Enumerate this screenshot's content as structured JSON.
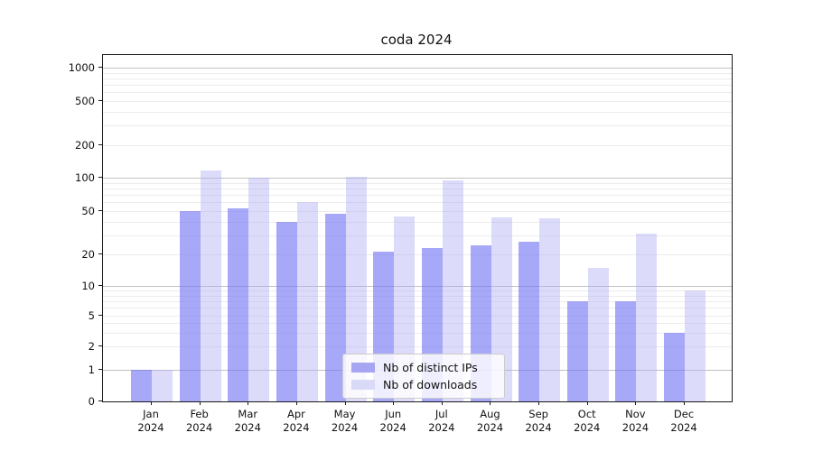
{
  "figure": {
    "title": "coda 2024"
  },
  "chart_data": {
    "type": "bar",
    "title": "coda 2024",
    "categories": [
      "Jan",
      "Feb",
      "Mar",
      "Apr",
      "May",
      "Jun",
      "Jul",
      "Aug",
      "Sep",
      "Oct",
      "Nov",
      "Dec"
    ],
    "category_year": "2024",
    "series": [
      {
        "name": "Nb of distinct IPs",
        "color": "#a5a5f1",
        "fill": "rgba(115,115,244,0.62)",
        "values": [
          1,
          50,
          53,
          40,
          47,
          21,
          23,
          24,
          26,
          7,
          7,
          3
        ]
      },
      {
        "name": "Nb of downloads",
        "color": "#d9d9f8",
        "fill": "rgba(177,177,244,0.45)",
        "values": [
          1,
          117,
          100,
          60,
          103,
          45,
          94,
          44,
          43,
          15,
          31,
          9
        ]
      }
    ],
    "yaxis": {
      "scale": "symlog",
      "ticks": [
        0,
        1,
        2,
        5,
        10,
        20,
        50,
        100,
        200,
        500,
        1000
      ],
      "major_gridlines": [
        1,
        10,
        100,
        1000
      ],
      "ylim": [
        0,
        1300
      ]
    },
    "legend": {
      "position": "lower-center",
      "entries": [
        "Nb of distinct IPs",
        "Nb of downloads"
      ]
    },
    "grid": true
  }
}
